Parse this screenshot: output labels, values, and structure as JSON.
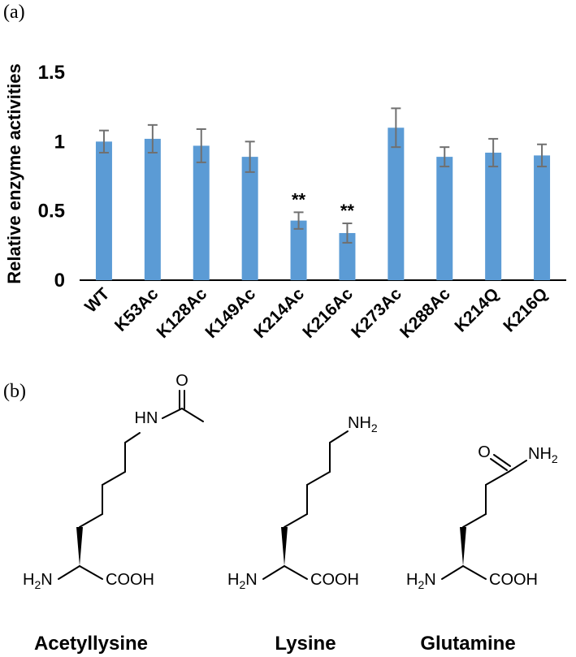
{
  "panels": {
    "a": "(a)",
    "b": "(b)"
  },
  "chart_data": {
    "type": "bar",
    "ylabel": "Relative enzyme activities",
    "xlabel": "",
    "ylim": [
      0,
      1.5
    ],
    "yticks": [
      0,
      0.5,
      1,
      1.5
    ],
    "ytick_labels": [
      "0",
      "0.5",
      "1",
      "1.5"
    ],
    "categories": [
      "WT",
      "K53Ac",
      "K128Ac",
      "K149Ac",
      "K214Ac",
      "K216Ac",
      "K273Ac",
      "K288Ac",
      "K214Q",
      "K216Q"
    ],
    "values": [
      1.0,
      1.02,
      0.97,
      0.89,
      0.43,
      0.34,
      1.1,
      0.89,
      0.92,
      0.9
    ],
    "errors": [
      0.08,
      0.1,
      0.12,
      0.11,
      0.06,
      0.07,
      0.14,
      0.07,
      0.1,
      0.08
    ],
    "annotations": [
      "",
      "",
      "",
      "",
      "**",
      "**",
      "",
      "",
      "",
      ""
    ],
    "bar_color": "#5B9BD5",
    "error_color": "#707070",
    "grid": false
  },
  "molecules": [
    {
      "name": "Acetyllysine",
      "atoms": {
        "hn": "HN",
        "o": "O",
        "h2n": "H",
        "h2n_sub": "2",
        "h2n_n": "N",
        "cooh": "COOH"
      }
    },
    {
      "name": "Lysine",
      "atoms": {
        "nh": "NH",
        "nh_sub": "2",
        "h2n": "H",
        "h2n_sub": "2",
        "h2n_n": "N",
        "cooh": "COOH"
      }
    },
    {
      "name": "Glutamine",
      "atoms": {
        "o": "O",
        "nh": "NH",
        "nh_sub": "2",
        "h2n": "H",
        "h2n_sub": "2",
        "h2n_n": "N",
        "cooh": "COOH"
      }
    }
  ]
}
